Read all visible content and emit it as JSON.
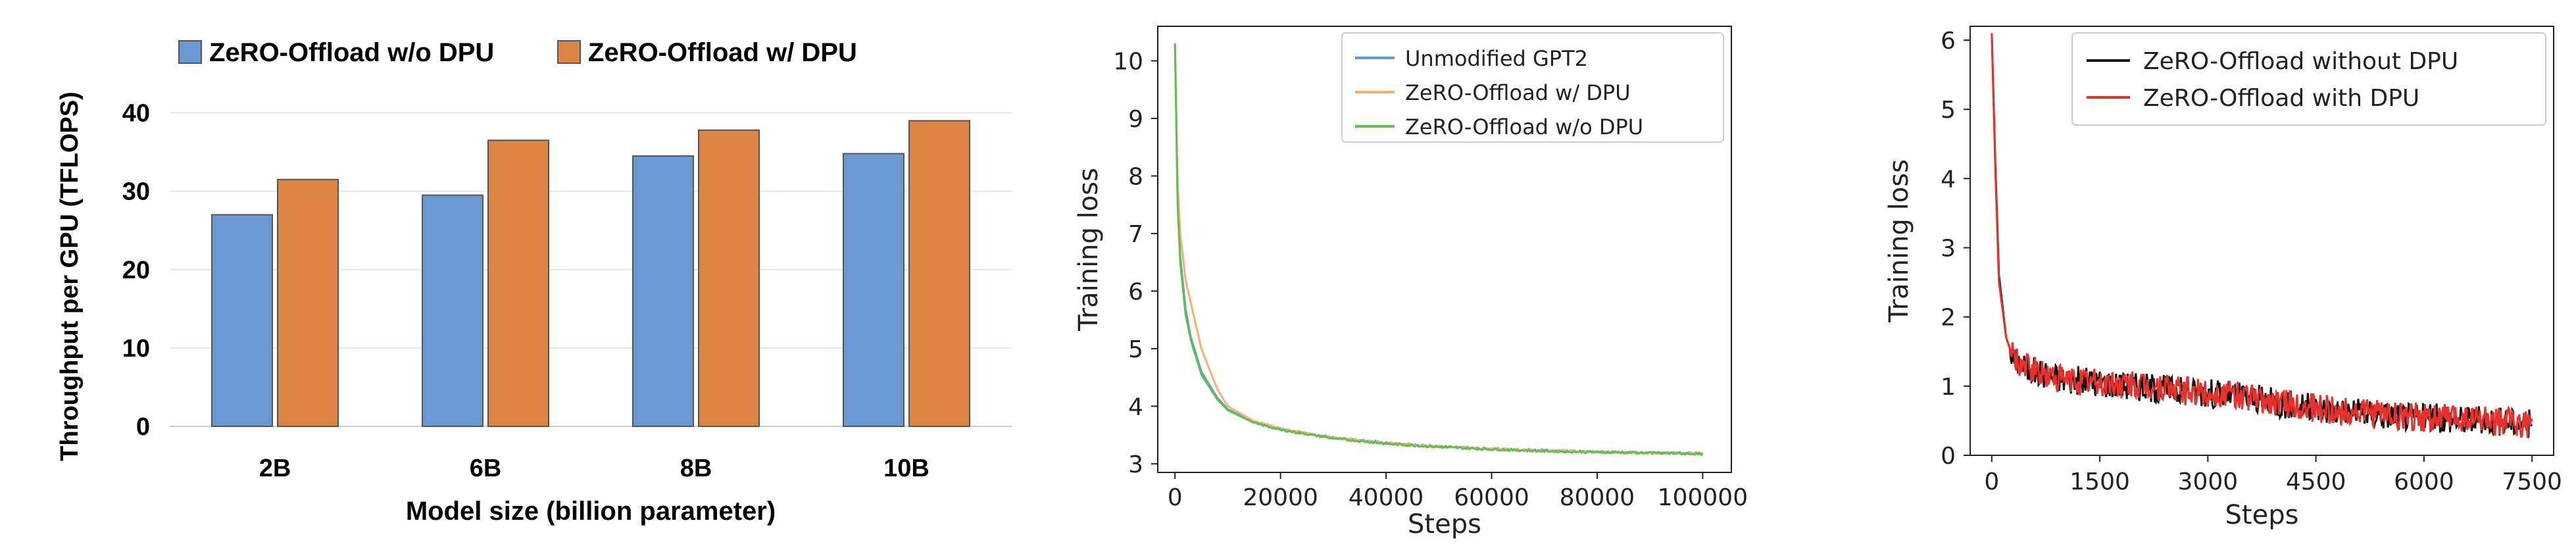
{
  "chart_data": [
    {
      "type": "bar",
      "categories": [
        "2B",
        "6B",
        "8B",
        "10B"
      ],
      "series": [
        {
          "name": "ZeRO-Offload w/o DPU",
          "values": [
            27,
            29.5,
            34.5,
            34.8
          ],
          "color": "#6a98d2"
        },
        {
          "name": "ZeRO-Offload w/ DPU",
          "values": [
            31.5,
            36.5,
            37.8,
            39
          ],
          "color": "#de8444"
        }
      ],
      "xlabel": "Model size (billion parameter)",
      "ylabel": "Throughput per GPU (TFLOPS)",
      "ylim": [
        0,
        45
      ],
      "yticks": [
        "0",
        "10",
        "20",
        "30",
        "40"
      ],
      "grid": true,
      "legend": "top"
    },
    {
      "type": "line",
      "series": [
        {
          "name": "Unmodified GPT2",
          "color": "#5b9bd5",
          "x": [
            0,
            500,
            1000,
            2000,
            3000,
            5000,
            8000,
            10000,
            15000,
            20000,
            30000,
            40000,
            50000,
            60000,
            70000,
            80000,
            90000,
            100000
          ],
          "y": [
            10.3,
            7.6,
            6.6,
            5.7,
            5.2,
            4.6,
            4.15,
            3.95,
            3.72,
            3.6,
            3.45,
            3.36,
            3.3,
            3.26,
            3.23,
            3.21,
            3.19,
            3.18
          ]
        },
        {
          "name": "ZeRO-Offload w/ DPU",
          "color": "#f5b16a",
          "x": [
            0,
            500,
            1000,
            2000,
            3000,
            5000,
            8000,
            10000,
            15000,
            20000,
            30000,
            40000,
            50000,
            60000,
            70000,
            80000,
            90000,
            100000
          ],
          "y": [
            10.3,
            7.9,
            7.0,
            6.2,
            5.8,
            5.0,
            4.3,
            4.0,
            3.74,
            3.61,
            3.45,
            3.36,
            3.3,
            3.26,
            3.23,
            3.21,
            3.19,
            3.18
          ]
        },
        {
          "name": "ZeRO-Offload w/o DPU",
          "color": "#5fbf4f",
          "x": [
            0,
            500,
            1000,
            2000,
            3000,
            5000,
            8000,
            10000,
            15000,
            20000,
            30000,
            40000,
            50000,
            60000,
            70000,
            80000,
            90000,
            100000
          ],
          "y": [
            10.3,
            7.5,
            6.5,
            5.6,
            5.15,
            4.55,
            4.12,
            3.93,
            3.71,
            3.59,
            3.44,
            3.35,
            3.29,
            3.25,
            3.22,
            3.2,
            3.19,
            3.17
          ]
        }
      ],
      "xlabel": "Steps",
      "ylabel": "Training loss",
      "xlim": [
        0,
        100000
      ],
      "ylim": [
        2.85,
        10.6
      ],
      "xticks": [
        "0",
        "20000",
        "40000",
        "60000",
        "80000",
        "100000"
      ],
      "yticks": [
        "3",
        "4",
        "5",
        "6",
        "7",
        "8",
        "9",
        "10"
      ],
      "grid": false,
      "legend": "top-right"
    },
    {
      "type": "line",
      "series": [
        {
          "name": "ZeRO-Offload without DPU",
          "color": "#111111",
          "x": [
            0,
            50,
            100,
            200,
            300,
            500,
            800,
            1000,
            1500,
            2000,
            2500,
            3000,
            3500,
            4000,
            4500,
            5000,
            5500,
            6000,
            6500,
            7000,
            7500
          ],
          "y": [
            6.1,
            4.2,
            2.6,
            1.7,
            1.4,
            1.25,
            1.15,
            1.1,
            1.05,
            1.0,
            0.95,
            0.9,
            0.85,
            0.75,
            0.68,
            0.62,
            0.58,
            0.55,
            0.52,
            0.5,
            0.45
          ]
        },
        {
          "name": "ZeRO-Offload with DPU",
          "color": "#e8312b",
          "x": [
            0,
            50,
            100,
            200,
            300,
            500,
            800,
            1000,
            1500,
            2000,
            2500,
            3000,
            3500,
            4000,
            4500,
            5000,
            5500,
            6000,
            6500,
            7000,
            7500
          ],
          "y": [
            6.1,
            4.1,
            2.5,
            1.7,
            1.4,
            1.25,
            1.15,
            1.1,
            1.05,
            1.0,
            0.95,
            0.9,
            0.85,
            0.75,
            0.68,
            0.62,
            0.58,
            0.55,
            0.52,
            0.5,
            0.45
          ]
        }
      ],
      "xlabel": "Steps",
      "ylabel": "Training loss",
      "xlim": [
        -300,
        7800
      ],
      "ylim": [
        0,
        6.2
      ],
      "xticks": [
        "0",
        "1500",
        "3000",
        "4500",
        "6000",
        "7500"
      ],
      "yticks": [
        "0",
        "1",
        "2",
        "3",
        "4",
        "5",
        "6"
      ],
      "grid": false,
      "legend": "top-right"
    }
  ]
}
